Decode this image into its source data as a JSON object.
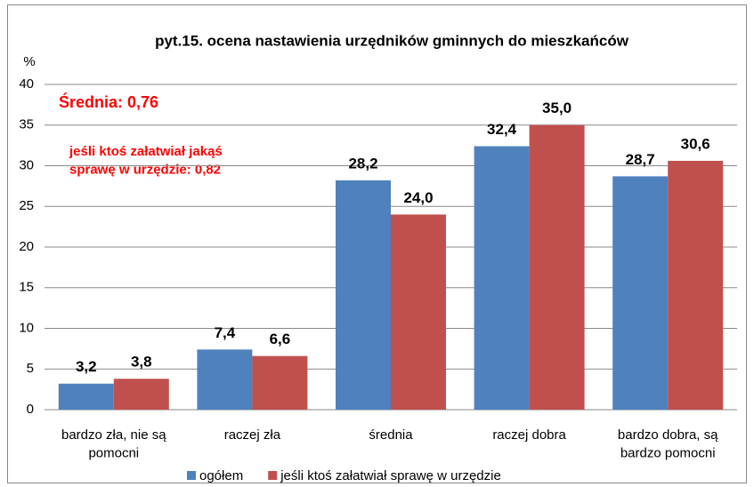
{
  "chart_data": {
    "type": "bar",
    "title": "pyt.15. ocena nastawienia urzędników  gminnych do mieszkańców",
    "y_label": "%",
    "annotations": [
      "Średnia: 0,76",
      "jeśli ktoś załatwiał jakąś\nsprawę w urzędzie: 0,82"
    ],
    "categories": [
      "bardzo zła, nie są\npomocni",
      "raczej zła",
      "średnia",
      "raczej dobra",
      "bardzo dobra, są\nbardzo pomocni"
    ],
    "series": [
      {
        "name": "ogółem",
        "color": "#4f81bd",
        "values": [
          3.2,
          7.4,
          28.2,
          32.4,
          28.7
        ],
        "value_labels": [
          "3,2",
          "7,4",
          "28,2",
          "32,4",
          "28,7"
        ]
      },
      {
        "name": "jeśli ktoś załatwiał sprawę w urzędzie",
        "color": "#c0504d",
        "values": [
          3.8,
          6.6,
          24.0,
          35.0,
          30.6
        ],
        "value_labels": [
          "3,8",
          "6,6",
          "24,0",
          "35,0",
          "30,6"
        ]
      }
    ],
    "ylim": [
      0,
      40
    ],
    "yticks": [
      0,
      5,
      10,
      15,
      20,
      25,
      30,
      35,
      40
    ],
    "grid": true
  }
}
